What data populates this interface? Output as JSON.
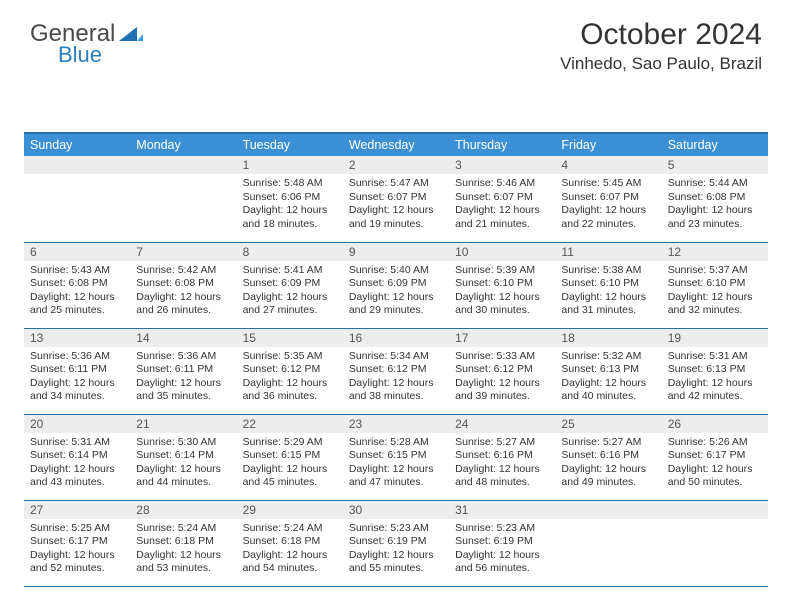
{
  "logo": {
    "line1_a": "General",
    "line2": "Blue"
  },
  "header": {
    "title": "October 2024",
    "location": "Vinhedo, Sao Paulo, Brazil"
  },
  "colors": {
    "header_bg": "#3b8fd4",
    "header_text": "#ffffff",
    "border": "#2a6fa8",
    "daynum_bg": "#ededed",
    "daynum_text": "#555555",
    "body_text": "#333333",
    "logo_gray": "#5a5a5a",
    "logo_blue": "#2a7fbf"
  },
  "typography": {
    "title_fontsize": 30,
    "location_fontsize": 17,
    "dayhead_fontsize": 12.5,
    "daynum_fontsize": 12,
    "body_fontsize": 10.5
  },
  "calendar": {
    "type": "table",
    "columns": [
      "Sunday",
      "Monday",
      "Tuesday",
      "Wednesday",
      "Thursday",
      "Friday",
      "Saturday"
    ],
    "weeks": [
      [
        null,
        null,
        {
          "n": "1",
          "sunrise": "5:48 AM",
          "sunset": "6:06 PM",
          "d1": "Daylight: 12 hours",
          "d2": "and 18 minutes."
        },
        {
          "n": "2",
          "sunrise": "5:47 AM",
          "sunset": "6:07 PM",
          "d1": "Daylight: 12 hours",
          "d2": "and 19 minutes."
        },
        {
          "n": "3",
          "sunrise": "5:46 AM",
          "sunset": "6:07 PM",
          "d1": "Daylight: 12 hours",
          "d2": "and 21 minutes."
        },
        {
          "n": "4",
          "sunrise": "5:45 AM",
          "sunset": "6:07 PM",
          "d1": "Daylight: 12 hours",
          "d2": "and 22 minutes."
        },
        {
          "n": "5",
          "sunrise": "5:44 AM",
          "sunset": "6:08 PM",
          "d1": "Daylight: 12 hours",
          "d2": "and 23 minutes."
        }
      ],
      [
        {
          "n": "6",
          "sunrise": "5:43 AM",
          "sunset": "6:08 PM",
          "d1": "Daylight: 12 hours",
          "d2": "and 25 minutes."
        },
        {
          "n": "7",
          "sunrise": "5:42 AM",
          "sunset": "6:08 PM",
          "d1": "Daylight: 12 hours",
          "d2": "and 26 minutes."
        },
        {
          "n": "8",
          "sunrise": "5:41 AM",
          "sunset": "6:09 PM",
          "d1": "Daylight: 12 hours",
          "d2": "and 27 minutes."
        },
        {
          "n": "9",
          "sunrise": "5:40 AM",
          "sunset": "6:09 PM",
          "d1": "Daylight: 12 hours",
          "d2": "and 29 minutes."
        },
        {
          "n": "10",
          "sunrise": "5:39 AM",
          "sunset": "6:10 PM",
          "d1": "Daylight: 12 hours",
          "d2": "and 30 minutes."
        },
        {
          "n": "11",
          "sunrise": "5:38 AM",
          "sunset": "6:10 PM",
          "d1": "Daylight: 12 hours",
          "d2": "and 31 minutes."
        },
        {
          "n": "12",
          "sunrise": "5:37 AM",
          "sunset": "6:10 PM",
          "d1": "Daylight: 12 hours",
          "d2": "and 32 minutes."
        }
      ],
      [
        {
          "n": "13",
          "sunrise": "5:36 AM",
          "sunset": "6:11 PM",
          "d1": "Daylight: 12 hours",
          "d2": "and 34 minutes."
        },
        {
          "n": "14",
          "sunrise": "5:36 AM",
          "sunset": "6:11 PM",
          "d1": "Daylight: 12 hours",
          "d2": "and 35 minutes."
        },
        {
          "n": "15",
          "sunrise": "5:35 AM",
          "sunset": "6:12 PM",
          "d1": "Daylight: 12 hours",
          "d2": "and 36 minutes."
        },
        {
          "n": "16",
          "sunrise": "5:34 AM",
          "sunset": "6:12 PM",
          "d1": "Daylight: 12 hours",
          "d2": "and 38 minutes."
        },
        {
          "n": "17",
          "sunrise": "5:33 AM",
          "sunset": "6:12 PM",
          "d1": "Daylight: 12 hours",
          "d2": "and 39 minutes."
        },
        {
          "n": "18",
          "sunrise": "5:32 AM",
          "sunset": "6:13 PM",
          "d1": "Daylight: 12 hours",
          "d2": "and 40 minutes."
        },
        {
          "n": "19",
          "sunrise": "5:31 AM",
          "sunset": "6:13 PM",
          "d1": "Daylight: 12 hours",
          "d2": "and 42 minutes."
        }
      ],
      [
        {
          "n": "20",
          "sunrise": "5:31 AM",
          "sunset": "6:14 PM",
          "d1": "Daylight: 12 hours",
          "d2": "and 43 minutes."
        },
        {
          "n": "21",
          "sunrise": "5:30 AM",
          "sunset": "6:14 PM",
          "d1": "Daylight: 12 hours",
          "d2": "and 44 minutes."
        },
        {
          "n": "22",
          "sunrise": "5:29 AM",
          "sunset": "6:15 PM",
          "d1": "Daylight: 12 hours",
          "d2": "and 45 minutes."
        },
        {
          "n": "23",
          "sunrise": "5:28 AM",
          "sunset": "6:15 PM",
          "d1": "Daylight: 12 hours",
          "d2": "and 47 minutes."
        },
        {
          "n": "24",
          "sunrise": "5:27 AM",
          "sunset": "6:16 PM",
          "d1": "Daylight: 12 hours",
          "d2": "and 48 minutes."
        },
        {
          "n": "25",
          "sunrise": "5:27 AM",
          "sunset": "6:16 PM",
          "d1": "Daylight: 12 hours",
          "d2": "and 49 minutes."
        },
        {
          "n": "26",
          "sunrise": "5:26 AM",
          "sunset": "6:17 PM",
          "d1": "Daylight: 12 hours",
          "d2": "and 50 minutes."
        }
      ],
      [
        {
          "n": "27",
          "sunrise": "5:25 AM",
          "sunset": "6:17 PM",
          "d1": "Daylight: 12 hours",
          "d2": "and 52 minutes."
        },
        {
          "n": "28",
          "sunrise": "5:24 AM",
          "sunset": "6:18 PM",
          "d1": "Daylight: 12 hours",
          "d2": "and 53 minutes."
        },
        {
          "n": "29",
          "sunrise": "5:24 AM",
          "sunset": "6:18 PM",
          "d1": "Daylight: 12 hours",
          "d2": "and 54 minutes."
        },
        {
          "n": "30",
          "sunrise": "5:23 AM",
          "sunset": "6:19 PM",
          "d1": "Daylight: 12 hours",
          "d2": "and 55 minutes."
        },
        {
          "n": "31",
          "sunrise": "5:23 AM",
          "sunset": "6:19 PM",
          "d1": "Daylight: 12 hours",
          "d2": "and 56 minutes."
        },
        null,
        null
      ]
    ]
  }
}
